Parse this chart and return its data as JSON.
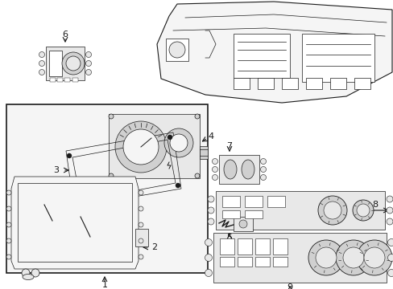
{
  "background_color": "#ffffff",
  "line_color": "#1a1a1a",
  "fill_light": "#f5f5f5",
  "fill_mid": "#e8e8e8",
  "fill_dark": "#d0d0d0",
  "white": "#ffffff"
}
